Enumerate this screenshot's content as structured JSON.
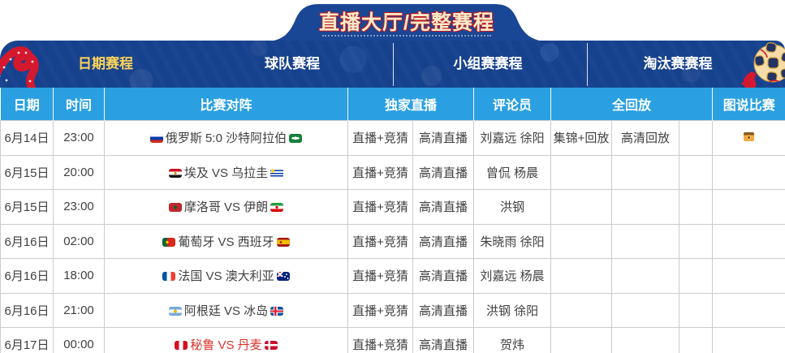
{
  "title": "直播大厅/完整赛程",
  "nav": {
    "items": [
      {
        "label": "日期赛程",
        "active": true
      },
      {
        "label": "球队赛程",
        "active": false
      },
      {
        "label": "小组赛赛程",
        "active": false
      },
      {
        "label": "淘汰赛赛程",
        "active": false
      }
    ]
  },
  "icons": {
    "left_decoration": "red-ribbon-icon",
    "right_decoration": "world-cup-ball-icon",
    "photos": "match-photos-icon"
  },
  "table": {
    "headers": [
      "日期",
      "时间",
      "比赛对阵",
      "独家直播",
      "评论员",
      "全回放",
      "图说比赛"
    ],
    "rows": [
      {
        "date": "6月14日",
        "time": "23:00",
        "home_flag": "ru",
        "away_flag": "sa",
        "match": "俄罗斯 5:0 沙特阿拉伯",
        "highlight": false,
        "live": "直播+竞猜",
        "hd_live": "高清直播",
        "commentators": "刘嘉远 徐阳",
        "replay_highlights": "集锦+回放",
        "replay_hd": "高清回放",
        "photos": true
      },
      {
        "date": "6月15日",
        "time": "20:00",
        "home_flag": "eg",
        "away_flag": "uy",
        "match": "埃及 VS 乌拉圭",
        "highlight": false,
        "live": "直播+竞猜",
        "hd_live": "高清直播",
        "commentators": "曾侃 杨晨",
        "replay_highlights": "",
        "replay_hd": "",
        "photos": false
      },
      {
        "date": "6月15日",
        "time": "23:00",
        "home_flag": "ma",
        "away_flag": "ir",
        "match": "摩洛哥 VS 伊朗",
        "highlight": false,
        "live": "直播+竞猜",
        "hd_live": "高清直播",
        "commentators": "洪钢",
        "replay_highlights": "",
        "replay_hd": "",
        "photos": false
      },
      {
        "date": "6月16日",
        "time": "02:00",
        "home_flag": "pt",
        "away_flag": "es",
        "match": "葡萄牙 VS 西班牙",
        "highlight": false,
        "live": "直播+竞猜",
        "hd_live": "高清直播",
        "commentators": "朱晓雨 徐阳",
        "replay_highlights": "",
        "replay_hd": "",
        "photos": false
      },
      {
        "date": "6月16日",
        "time": "18:00",
        "home_flag": "fr",
        "away_flag": "au",
        "match": "法国 VS 澳大利亚",
        "highlight": false,
        "live": "直播+竞猜",
        "hd_live": "高清直播",
        "commentators": "刘嘉远 杨晨",
        "replay_highlights": "",
        "replay_hd": "",
        "photos": false
      },
      {
        "date": "6月16日",
        "time": "21:00",
        "home_flag": "ar",
        "away_flag": "is",
        "match": "阿根廷 VS 冰岛",
        "highlight": false,
        "live": "直播+竞猜",
        "hd_live": "高清直播",
        "commentators": "洪钢 徐阳",
        "replay_highlights": "",
        "replay_hd": "",
        "photos": false
      },
      {
        "date": "6月17日",
        "time": "00:00",
        "home_flag": "pe",
        "away_flag": "dk",
        "match": "秘鲁 VS 丹麦",
        "highlight": true,
        "live": "直播+竞猜",
        "hd_live": "高清直播",
        "commentators": "贺炜",
        "replay_highlights": "",
        "replay_hd": "",
        "photos": false
      }
    ]
  },
  "colors": {
    "nav_bg": "#16418d",
    "header_bg": "#2aa0e2",
    "active_tab_text": "#fbd35b",
    "title_text": "#f6ecca",
    "accent_red": "#d6182e",
    "highlight_row_text": "#d9342b",
    "body_text": "#3f3f3f",
    "grid_border": "#cccccc"
  }
}
